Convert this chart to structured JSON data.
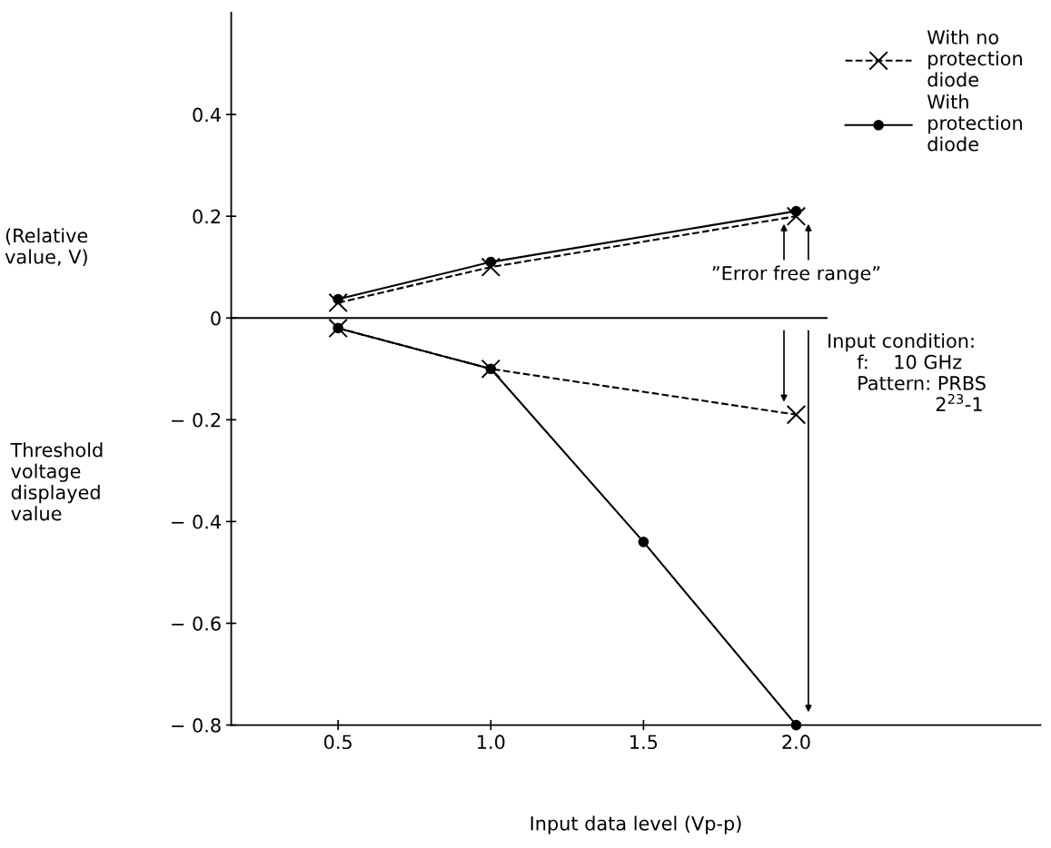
{
  "chart_data": {
    "type": "line",
    "xlabel": "Input data level (Vp-p)",
    "ylabel": "(Relative\nvalue, V)",
    "x": [
      0.5,
      1.0,
      2.0
    ],
    "series": [
      {
        "name": "With no\nprotection\ndiode",
        "color": "#000000",
        "marker": "cross",
        "line_style": "dashed",
        "values": [
          0.03,
          0.1,
          0.2
        ]
      },
      {
        "name": "With\nprotection\ndiode",
        "color": "#000000",
        "marker": "circle",
        "line_style": "solid",
        "values": [
          0.037,
          0.11,
          0.21
        ]
      },
      {
        "color": "#000000",
        "marker": "circle",
        "line_style": "solid",
        "x": [
          0.5,
          1.0,
          1.5,
          2.0
        ],
        "values": [
          -0.02,
          -0.1,
          -0.44,
          -0.8
        ]
      },
      {
        "color": "#000000",
        "marker": "cross",
        "line_style": "dashed",
        "values": [
          -0.02,
          -0.1,
          -0.19
        ]
      }
    ],
    "xlim": [
      0.15,
      2.8
    ],
    "ylim": [
      -0.8,
      0.6
    ],
    "xticks": [
      {
        "value": 0.5,
        "label": "0.5"
      },
      {
        "value": 1.0,
        "label": "1.0"
      },
      {
        "value": 1.5,
        "label": "1.5"
      },
      {
        "value": 2.0,
        "label": "2.0"
      }
    ],
    "yticks": [
      {
        "value": -0.8,
        "label": "− 0.8"
      },
      {
        "value": -0.6,
        "label": "− 0.6"
      },
      {
        "value": -0.4,
        "label": "− 0.4"
      },
      {
        "value": -0.2,
        "label": "− 0.2"
      },
      0,
      0.2,
      0.4
    ],
    "ref_lines": [
      {
        "axis": "y",
        "value": 0,
        "color": "#000000"
      }
    ],
    "annotations": [
      "Threshold\nvoltage\ndisplayed\nvalue",
      {
        "text": "”Error free range”",
        "x": 2.0,
        "y": 0.2
      },
      "Input condition:\n     f:    10 GHz\n     Pattern: PRBS\n                  2$^{23}$-1"
    ],
    "legend": "top right",
    "grid": false
  }
}
